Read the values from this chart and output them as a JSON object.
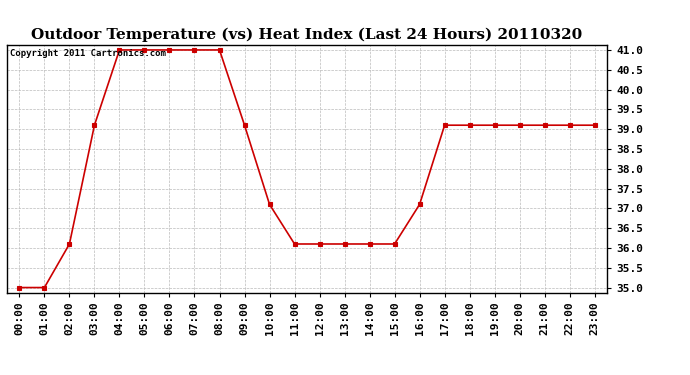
{
  "title": "Outdoor Temperature (vs) Heat Index (Last 24 Hours) 20110320",
  "copyright_text": "Copyright 2011 Cartronics.com",
  "x_labels": [
    "00:00",
    "01:00",
    "02:00",
    "03:00",
    "04:00",
    "05:00",
    "06:00",
    "07:00",
    "08:00",
    "09:00",
    "10:00",
    "11:00",
    "12:00",
    "13:00",
    "14:00",
    "15:00",
    "16:00",
    "17:00",
    "18:00",
    "19:00",
    "20:00",
    "21:00",
    "22:00",
    "23:00"
  ],
  "y_values": [
    35.0,
    35.0,
    36.1,
    39.1,
    41.0,
    41.0,
    41.0,
    41.0,
    41.0,
    39.1,
    37.1,
    36.1,
    36.1,
    36.1,
    36.1,
    36.1,
    37.1,
    39.1,
    39.1,
    39.1,
    39.1,
    39.1,
    39.1,
    39.1
  ],
  "line_color": "#cc0000",
  "marker_color": "#cc0000",
  "marker": "s",
  "marker_size": 3,
  "line_width": 1.2,
  "ylim": [
    34.875,
    41.125
  ],
  "yticks": [
    35.0,
    35.5,
    36.0,
    36.5,
    37.0,
    37.5,
    38.0,
    38.5,
    39.0,
    39.5,
    40.0,
    40.5,
    41.0
  ],
  "background_color": "#ffffff",
  "grid_color": "#bbbbbb",
  "title_fontsize": 11,
  "tick_fontsize": 8,
  "copyright_fontsize": 6.5
}
